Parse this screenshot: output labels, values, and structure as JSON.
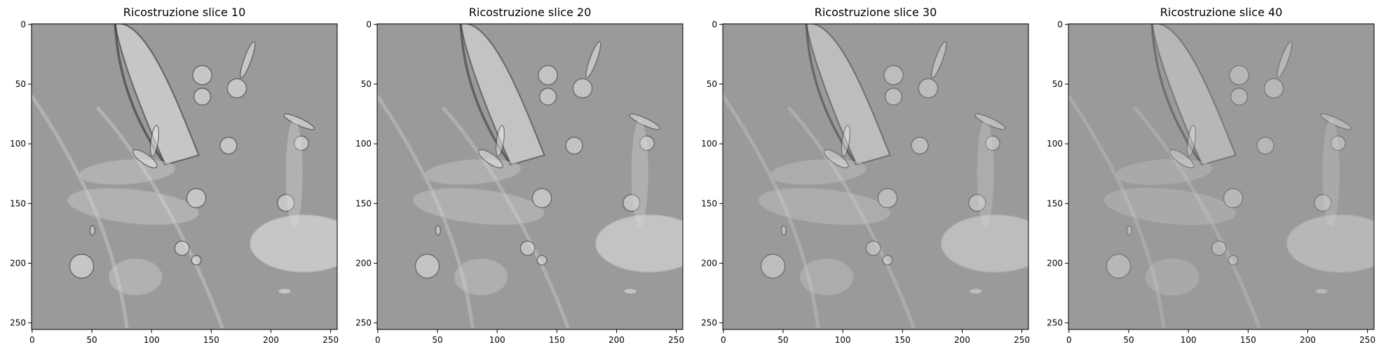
{
  "chart_data": [
    {
      "type": "heatmap",
      "title": "Ricostruzione slice 10",
      "colormap": "gray",
      "background_color": "#9a9a9a",
      "xlim": [
        0,
        255
      ],
      "ylim": [
        255,
        0
      ],
      "xticks": [
        0,
        50,
        100,
        150,
        200,
        250
      ],
      "yticks": [
        0,
        50,
        100,
        150,
        200,
        250
      ],
      "grid": false
    },
    {
      "type": "heatmap",
      "title": "Ricostruzione slice 20",
      "colormap": "gray",
      "background_color": "#9a9a9a",
      "xlim": [
        0,
        255
      ],
      "ylim": [
        255,
        0
      ],
      "xticks": [
        0,
        50,
        100,
        150,
        200,
        250
      ],
      "yticks": [
        0,
        50,
        100,
        150,
        200,
        250
      ],
      "grid": false
    },
    {
      "type": "heatmap",
      "title": "Ricostruzione slice 30",
      "colormap": "gray",
      "background_color": "#9a9a9a",
      "xlim": [
        0,
        255
      ],
      "ylim": [
        255,
        0
      ],
      "xticks": [
        0,
        50,
        100,
        150,
        200,
        250
      ],
      "yticks": [
        0,
        50,
        100,
        150,
        200,
        250
      ],
      "grid": false
    },
    {
      "type": "heatmap",
      "title": "Ricostruzione slice 40",
      "colormap": "gray",
      "background_color": "#9a9a9a",
      "xlim": [
        0,
        255
      ],
      "ylim": [
        255,
        0
      ],
      "xticks": [
        0,
        50,
        100,
        150,
        200,
        250
      ],
      "yticks": [
        0,
        50,
        100,
        150,
        200,
        250
      ],
      "grid": false
    }
  ]
}
